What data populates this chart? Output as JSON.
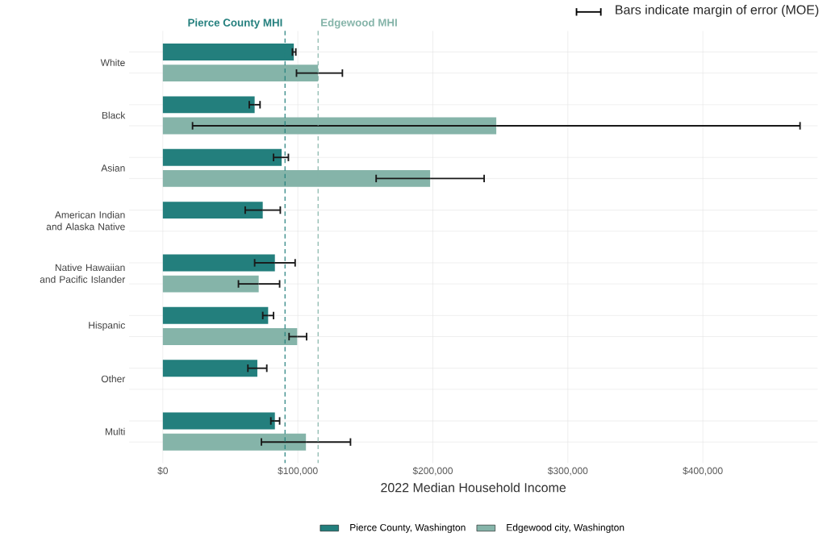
{
  "chart_data": {
    "type": "bar",
    "orientation": "horizontal",
    "xlabel": "2022 Median Household Income",
    "categories": [
      "White",
      "Black",
      "Asian",
      "American Indian and Alaska Native",
      "Native Hawaiian and Pacific Islander",
      "Hispanic",
      "Other",
      "Multi"
    ],
    "series": [
      {
        "name": "Pierce County, Washington",
        "color": "#237f7d",
        "values": [
          97000,
          68000,
          88000,
          74000,
          83000,
          78000,
          70000,
          83000
        ],
        "errors": [
          [
            96000,
            98500
          ],
          [
            64000,
            72000
          ],
          [
            82000,
            93000
          ],
          [
            61000,
            87000
          ],
          [
            68000,
            98000
          ],
          [
            74000,
            82000
          ],
          [
            63000,
            77000
          ],
          [
            80000,
            86500
          ]
        ]
      },
      {
        "name": "Edgewood city, Washington",
        "color": "#85b4a9",
        "values": [
          115000,
          247000,
          198000,
          null,
          71000,
          99500,
          null,
          106000
        ],
        "errors": [
          [
            99000,
            133000
          ],
          [
            22000,
            472000
          ],
          [
            158000,
            238000
          ],
          null,
          [
            56000,
            86500
          ],
          [
            93500,
            106500
          ],
          null,
          [
            73000,
            139000
          ]
        ]
      }
    ],
    "xlim": [
      -25000,
      485000
    ],
    "xticks": [
      {
        "value": 0,
        "label": "$0"
      },
      {
        "value": 100000,
        "label": "$100,000"
      },
      {
        "value": 200000,
        "label": "$200,000"
      },
      {
        "value": 300000,
        "label": "$300,000"
      },
      {
        "value": 400000,
        "label": "$400,000"
      }
    ],
    "ref_lines": [
      {
        "axis": "x",
        "value": 90500,
        "label": "Pierce County MHI",
        "color": "#237f7d",
        "line_style": "dashed"
      },
      {
        "axis": "x",
        "value": 115000,
        "label": "Edgewood MHI",
        "color": "#85b4a9",
        "line_style": "dashed"
      }
    ],
    "annotations": [
      "Bars indicate margin of error (MOE)"
    ],
    "grid": true,
    "legend": "bottom"
  }
}
